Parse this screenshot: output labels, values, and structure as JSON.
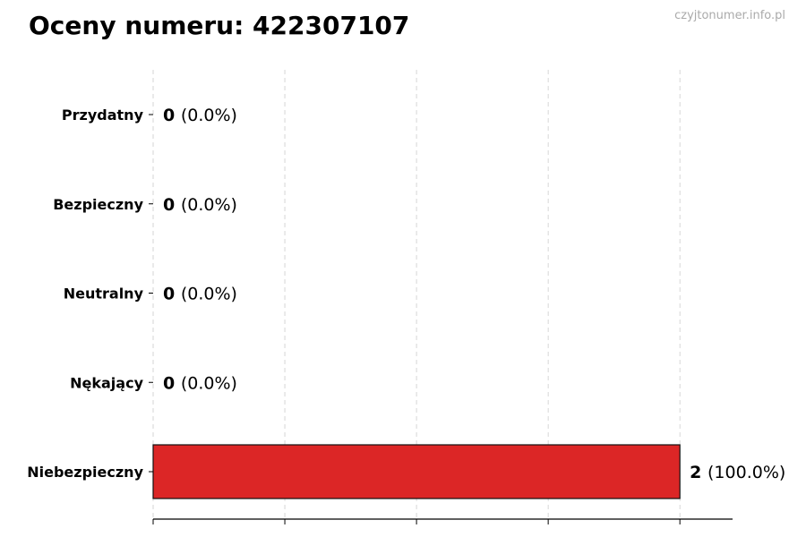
{
  "chart_data": {
    "type": "bar",
    "orientation": "horizontal",
    "title": "Oceny numeru: 422307107",
    "watermark": "czyjtonumer.info.pl",
    "categories": [
      "Przydatny",
      "Bezpieczny",
      "Neutralny",
      "Nękający",
      "Niebezpieczny"
    ],
    "values": [
      0,
      0,
      0,
      0,
      2
    ],
    "labels": [
      "(0.0%)",
      "(0.0%)",
      "(0.0%)",
      "(0.0%)",
      "(100.0%)"
    ],
    "colors": [
      "#2ca02c",
      "#2ca02c",
      "#888888",
      "#d62728",
      "#dc2626"
    ],
    "xlim": [
      0,
      2.2
    ],
    "xgrid_ticks": [
      0,
      0.5,
      1,
      1.5,
      2
    ],
    "grid": "vertical dashed",
    "xtick_labels_shown": false
  }
}
